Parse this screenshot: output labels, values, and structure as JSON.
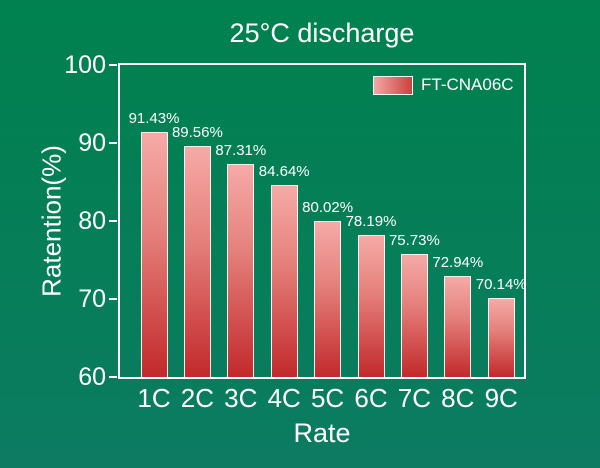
{
  "chart_data": {
    "type": "bar",
    "title": "25°C discharge",
    "xlabel": "Rate",
    "ylabel": "Ratention(%)",
    "legend": "FT-CNA06C",
    "legend_position": "top-right",
    "categories": [
      "1C",
      "2C",
      "3C",
      "4C",
      "5C",
      "6C",
      "7C",
      "8C",
      "9C"
    ],
    "values": [
      91.43,
      89.56,
      87.31,
      84.64,
      80.02,
      78.19,
      75.73,
      72.94,
      70.14
    ],
    "value_labels": [
      "91.43%",
      "89.56%",
      "87.31%",
      "84.64%",
      "80.02%",
      "78.19%",
      "75.73%",
      "72.94%",
      "70.14%"
    ],
    "yticks": [
      60,
      70,
      80,
      90,
      100
    ],
    "ylim": [
      60,
      100
    ],
    "grid": false,
    "colors": {
      "background_top": "#00814f",
      "background_bottom": "#0c7b62",
      "bar_gradient_top": "#f6aaa7",
      "bar_gradient_bottom": "#c2292b",
      "bar_border": "#ffffff",
      "axis": "#ffffff",
      "text": "#ffffff"
    }
  }
}
